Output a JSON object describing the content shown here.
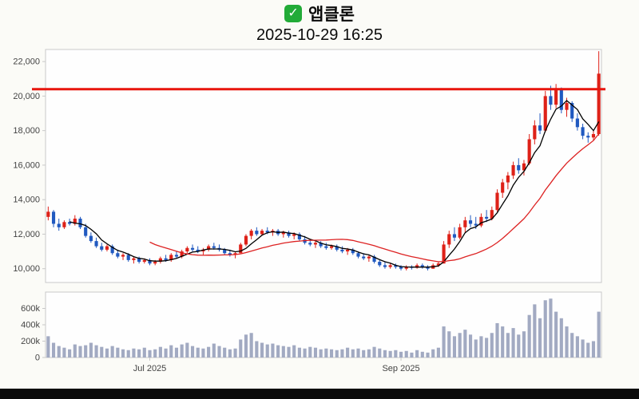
{
  "header": {
    "icon": "✓",
    "title": "앱클론",
    "datetime": "2025-10-29 16:25"
  },
  "chart_data": {
    "type": "candlestick_with_volume",
    "symbol": "앱클론",
    "as_of": "2025-10-29 16:25",
    "price_axis": {
      "range": [
        9200,
        22700
      ],
      "ticks": [
        {
          "value": 10000,
          "label": "10,000"
        },
        {
          "value": 12000,
          "label": "12,000"
        },
        {
          "value": 14000,
          "label": "14,000"
        },
        {
          "value": 16000,
          "label": "16,000"
        },
        {
          "value": 18000,
          "label": "18,000"
        },
        {
          "value": 20000,
          "label": "20,000"
        },
        {
          "value": 22000,
          "label": "22,000"
        }
      ]
    },
    "volume_axis": {
      "max": 800000,
      "ticks": [
        {
          "value": 0,
          "label": "0"
        },
        {
          "value": 200000,
          "label": "200k"
        },
        {
          "value": 400000,
          "label": "400k"
        },
        {
          "value": 600000,
          "label": "600k"
        }
      ]
    },
    "x_ticks": [
      {
        "index": 19,
        "label": "Jul 2025"
      },
      {
        "index": 66,
        "label": "Sep 2025"
      }
    ],
    "resistance_level": 20400,
    "moving_averages": [
      {
        "period": 5,
        "color": "#000000"
      },
      {
        "period": 20,
        "color": "#dd2222"
      }
    ],
    "colors": {
      "up": "#de2118",
      "down": "#2059c0",
      "volume": "#a2aac2",
      "border": "#c9c9c9",
      "label": "#444444",
      "plot_bg": "#fefefe",
      "resistance": "#e8150d"
    },
    "candles_format": [
      "open",
      "high",
      "low",
      "close",
      "volume"
    ],
    "candles": [
      [
        13000,
        13600,
        12800,
        13300,
        260000
      ],
      [
        13300,
        13400,
        12400,
        12600,
        180000
      ],
      [
        12600,
        12900,
        12200,
        12400,
        140000
      ],
      [
        12400,
        12800,
        12300,
        12700,
        120000
      ],
      [
        12700,
        12900,
        12500,
        12600,
        100000
      ],
      [
        12600,
        13100,
        12500,
        12900,
        160000
      ],
      [
        12900,
        13000,
        12300,
        12400,
        140000
      ],
      [
        12400,
        12600,
        11800,
        11900,
        150000
      ],
      [
        11900,
        12100,
        11500,
        11600,
        180000
      ],
      [
        11600,
        11800,
        11200,
        11300,
        150000
      ],
      [
        11300,
        11500,
        11000,
        11100,
        130000
      ],
      [
        11100,
        11400,
        11000,
        11300,
        110000
      ],
      [
        11300,
        11400,
        10800,
        10900,
        140000
      ],
      [
        10900,
        11100,
        10600,
        10700,
        120000
      ],
      [
        10700,
        10900,
        10500,
        10800,
        100000
      ],
      [
        10800,
        10900,
        10400,
        10500,
        90000
      ],
      [
        10500,
        10700,
        10300,
        10600,
        110000
      ],
      [
        10600,
        10700,
        10300,
        10400,
        100000
      ],
      [
        10400,
        10600,
        10300,
        10500,
        120000
      ],
      [
        10500,
        10600,
        10200,
        10300,
        90000
      ],
      [
        10300,
        10500,
        10200,
        10400,
        100000
      ],
      [
        10400,
        10700,
        10300,
        10600,
        130000
      ],
      [
        10600,
        10800,
        10400,
        10500,
        110000
      ],
      [
        10500,
        10900,
        10400,
        10800,
        150000
      ],
      [
        10800,
        11000,
        10600,
        10700,
        120000
      ],
      [
        10700,
        11100,
        10600,
        11000,
        160000
      ],
      [
        11000,
        11300,
        10900,
        11200,
        180000
      ],
      [
        11200,
        11400,
        11000,
        11100,
        140000
      ],
      [
        11100,
        11300,
        10900,
        11000,
        120000
      ],
      [
        11000,
        11200,
        10800,
        11100,
        110000
      ],
      [
        11100,
        11400,
        11000,
        11300,
        130000
      ],
      [
        11300,
        11500,
        11100,
        11200,
        170000
      ],
      [
        11200,
        11400,
        11000,
        11100,
        140000
      ],
      [
        11100,
        11200,
        10800,
        10900,
        120000
      ],
      [
        10900,
        11100,
        10700,
        10800,
        100000
      ],
      [
        10800,
        11000,
        10600,
        10900,
        110000
      ],
      [
        10900,
        11500,
        10900,
        11400,
        220000
      ],
      [
        11400,
        12000,
        11300,
        11900,
        280000
      ],
      [
        11900,
        12300,
        11700,
        12200,
        300000
      ],
      [
        12200,
        12400,
        11900,
        12000,
        200000
      ],
      [
        12000,
        12300,
        11900,
        12200,
        180000
      ],
      [
        12200,
        12400,
        12000,
        12100,
        160000
      ],
      [
        12100,
        12300,
        11900,
        12200,
        170000
      ],
      [
        12200,
        12300,
        11900,
        12000,
        150000
      ],
      [
        12000,
        12200,
        11800,
        12100,
        140000
      ],
      [
        12100,
        12200,
        11800,
        11900,
        130000
      ],
      [
        11900,
        12100,
        11700,
        12000,
        150000
      ],
      [
        12000,
        12100,
        11600,
        11700,
        120000
      ],
      [
        11700,
        11900,
        11400,
        11500,
        110000
      ],
      [
        11500,
        11700,
        11300,
        11400,
        130000
      ],
      [
        11400,
        11600,
        11200,
        11500,
        120000
      ],
      [
        11500,
        11600,
        11200,
        11300,
        100000
      ],
      [
        11300,
        11500,
        11100,
        11200,
        110000
      ],
      [
        11200,
        11400,
        11100,
        11300,
        100000
      ],
      [
        11300,
        11400,
        11000,
        11100,
        90000
      ],
      [
        11100,
        11300,
        10900,
        11000,
        100000
      ],
      [
        11000,
        11200,
        10800,
        11100,
        120000
      ],
      [
        11100,
        11200,
        10800,
        10900,
        100000
      ],
      [
        10900,
        11000,
        10600,
        10700,
        110000
      ],
      [
        10700,
        10900,
        10500,
        10600,
        90000
      ],
      [
        10600,
        10800,
        10400,
        10700,
        100000
      ],
      [
        10700,
        10800,
        10300,
        10400,
        130000
      ],
      [
        10400,
        10500,
        10100,
        10200,
        110000
      ],
      [
        10200,
        10400,
        10000,
        10100,
        90000
      ],
      [
        10100,
        10300,
        10000,
        10200,
        80000
      ],
      [
        10200,
        10300,
        10000,
        10100,
        90000
      ],
      [
        10100,
        10200,
        9900,
        10000,
        70000
      ],
      [
        10000,
        10200,
        9900,
        10100,
        80000
      ],
      [
        10100,
        10200,
        9950,
        10050,
        60000
      ],
      [
        10050,
        10300,
        10000,
        10200,
        90000
      ],
      [
        10200,
        10300,
        10000,
        10100,
        70000
      ],
      [
        10100,
        10200,
        9900,
        10000,
        60000
      ],
      [
        10000,
        10300,
        10000,
        10200,
        100000
      ],
      [
        10200,
        10400,
        10100,
        10300,
        120000
      ],
      [
        10300,
        11600,
        10300,
        11400,
        380000
      ],
      [
        11400,
        12200,
        11200,
        12000,
        320000
      ],
      [
        12000,
        12400,
        11600,
        11800,
        260000
      ],
      [
        11800,
        12600,
        11700,
        12400,
        300000
      ],
      [
        12400,
        13000,
        12100,
        12800,
        340000
      ],
      [
        12800,
        13100,
        12400,
        12600,
        280000
      ],
      [
        12600,
        13000,
        12300,
        12500,
        220000
      ],
      [
        12500,
        13200,
        12400,
        13000,
        260000
      ],
      [
        13000,
        13400,
        12700,
        12900,
        240000
      ],
      [
        12900,
        13600,
        12800,
        13400,
        300000
      ],
      [
        13400,
        14600,
        13300,
        14400,
        420000
      ],
      [
        14400,
        15200,
        14100,
        15000,
        380000
      ],
      [
        15000,
        15600,
        14600,
        15400,
        300000
      ],
      [
        15400,
        16200,
        15200,
        16000,
        360000
      ],
      [
        16000,
        16400,
        15500,
        15700,
        280000
      ],
      [
        15700,
        16300,
        15400,
        16100,
        320000
      ],
      [
        16100,
        17800,
        16000,
        17500,
        520000
      ],
      [
        17500,
        18600,
        17200,
        18300,
        650000
      ],
      [
        18300,
        19000,
        17800,
        18000,
        480000
      ],
      [
        18000,
        20300,
        17900,
        20000,
        700000
      ],
      [
        20000,
        20600,
        19200,
        19500,
        720000
      ],
      [
        19500,
        20700,
        19300,
        20400,
        560000
      ],
      [
        20400,
        20500,
        19000,
        19200,
        480000
      ],
      [
        19200,
        19900,
        18800,
        19600,
        380000
      ],
      [
        19600,
        19700,
        18500,
        18700,
        300000
      ],
      [
        18700,
        19000,
        18000,
        18200,
        260000
      ],
      [
        18200,
        18400,
        17500,
        17700,
        220000
      ],
      [
        17700,
        17900,
        17300,
        17600,
        180000
      ],
      [
        17600,
        18000,
        17400,
        17800,
        200000
      ],
      [
        17800,
        22600,
        17700,
        21300,
        560000
      ]
    ]
  }
}
